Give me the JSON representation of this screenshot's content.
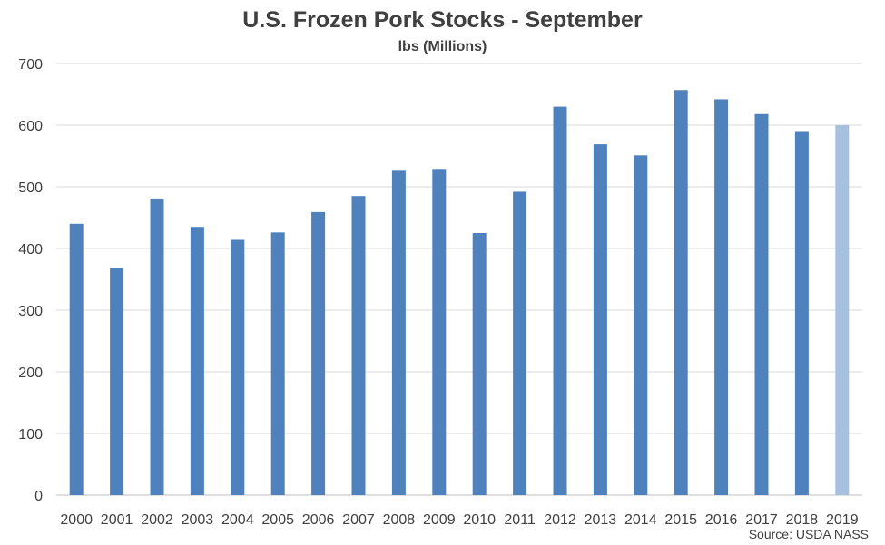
{
  "chart_data": {
    "type": "bar",
    "title": "U.S. Frozen Pork Stocks - September",
    "subtitle": "lbs (Millions)",
    "xlabel": "",
    "ylabel": "",
    "ylim": [
      0,
      700
    ],
    "yticks": [
      0,
      100,
      200,
      300,
      400,
      500,
      600,
      700
    ],
    "grid": true,
    "categories": [
      "2000",
      "2001",
      "2002",
      "2003",
      "2004",
      "2005",
      "2006",
      "2007",
      "2008",
      "2009",
      "2010",
      "2011",
      "2012",
      "2013",
      "2014",
      "2015",
      "2016",
      "2017",
      "2018",
      "2019"
    ],
    "values": [
      440,
      368,
      481,
      435,
      414,
      426,
      459,
      485,
      526,
      529,
      425,
      492,
      630,
      569,
      551,
      657,
      642,
      618,
      589,
      600
    ],
    "highlight_index": 19,
    "source": "Source: USDA NASS"
  },
  "colors": {
    "bar": "#4f81bd",
    "bar_highlight": "#a6c0de",
    "grid": "#d9d9d9",
    "axis": "#bfbfbf",
    "text": "#404040"
  }
}
